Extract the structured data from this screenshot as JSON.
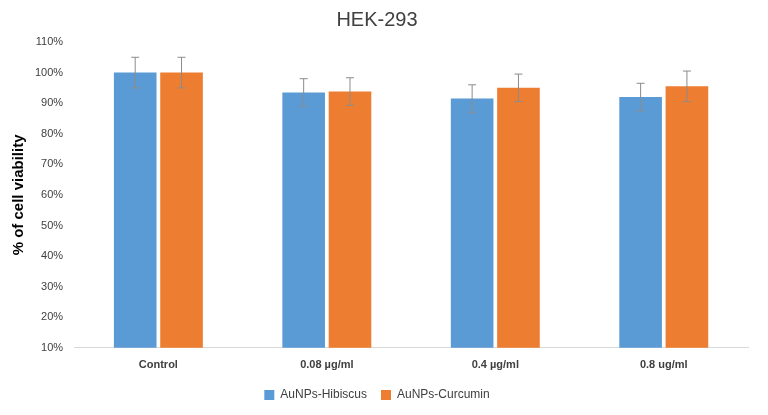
{
  "chart_data": {
    "type": "bar",
    "title": "HEK-293",
    "y_label": "% of cell viability",
    "categories": [
      "Control",
      "0.08 µg/ml",
      "0.4 µg/ml",
      "0.8 ug/ml"
    ],
    "series": [
      {
        "name": "AuNPs-Hibiscus",
        "color": "#5b9bd5",
        "values": [
          100,
          93.5,
          91.5,
          92
        ],
        "errors": [
          5,
          4.5,
          4.5,
          4.5
        ]
      },
      {
        "name": "AuNPs-Curcumin",
        "color": "#ed7d31",
        "values": [
          100,
          93.8,
          95,
          95.5
        ],
        "errors": [
          5,
          4.5,
          4.5,
          5
        ]
      }
    ],
    "ylim": [
      10,
      110
    ],
    "yticks": [
      {
        "value": 10,
        "label": "10%"
      },
      {
        "value": 20,
        "label": "20%"
      },
      {
        "value": 30,
        "label": "30%"
      },
      {
        "value": 40,
        "label": "40%"
      },
      {
        "value": 50,
        "label": "50%"
      },
      {
        "value": 60,
        "label": "60%"
      },
      {
        "value": 70,
        "label": "70%"
      },
      {
        "value": 80,
        "label": "80%"
      },
      {
        "value": 90,
        "label": "90%"
      },
      {
        "value": 100,
        "label": "100%"
      },
      {
        "value": 110,
        "label": "110%"
      }
    ],
    "grid": false,
    "legend": "bottom"
  }
}
